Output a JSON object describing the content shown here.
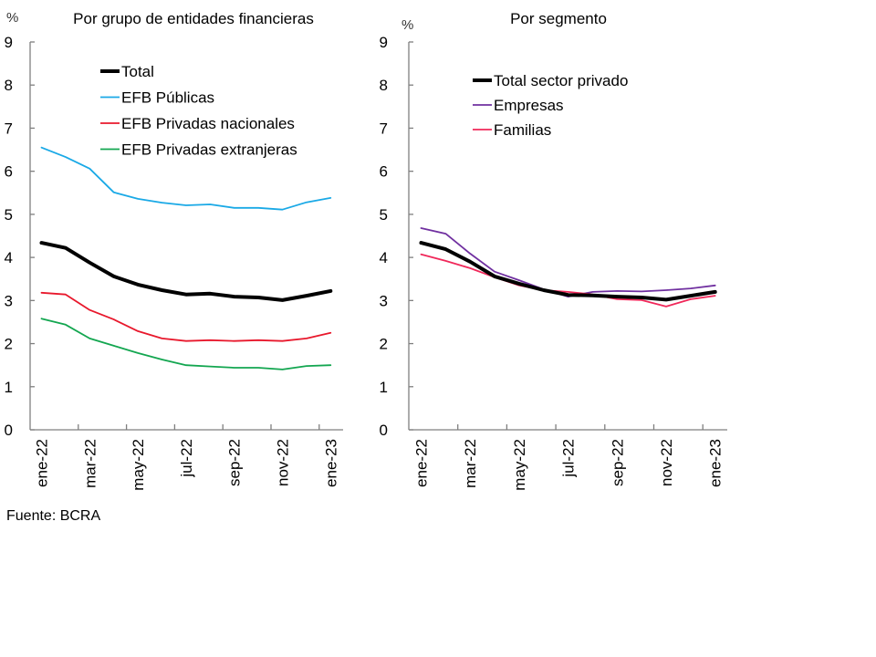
{
  "source": "Fuente: BCRA",
  "chart_data": [
    {
      "type": "line",
      "title": "Por grupo de entidades financieras",
      "ylabel": "%",
      "xlabel": "",
      "ylim": [
        0,
        9
      ],
      "yticks": [
        "0",
        "1",
        "2",
        "3",
        "4",
        "5",
        "6",
        "7",
        "8",
        "9"
      ],
      "x": [
        "ene-22",
        "feb-22",
        "mar-22",
        "abr-22",
        "may-22",
        "jun-22",
        "jul-22",
        "ago-22",
        "sep-22",
        "oct-22",
        "nov-22",
        "dic-22",
        "ene-23"
      ],
      "xtick_labels": [
        "ene-22",
        "mar-22",
        "may-22",
        "jul-22",
        "sep-22",
        "nov-22",
        "ene-23"
      ],
      "grid": false,
      "legend_position": "top-center",
      "series": [
        {
          "name": "Total",
          "color": "#000000",
          "bold": true,
          "values": [
            4.34,
            4.22,
            3.88,
            3.56,
            3.37,
            3.24,
            3.14,
            3.16,
            3.09,
            3.07,
            3.01,
            3.11,
            3.22
          ]
        },
        {
          "name": "EFB Públicas",
          "color": "#1aa9e6",
          "bold": false,
          "values": [
            6.55,
            6.33,
            6.06,
            5.51,
            5.36,
            5.27,
            5.21,
            5.23,
            5.15,
            5.15,
            5.11,
            5.28,
            5.38
          ]
        },
        {
          "name": "EFB Privadas nacionales",
          "color": "#e8182c",
          "bold": false,
          "values": [
            3.18,
            3.14,
            2.78,
            2.56,
            2.29,
            2.12,
            2.06,
            2.08,
            2.06,
            2.08,
            2.06,
            2.12,
            2.25
          ]
        },
        {
          "name": "EFB Privadas extranjeras",
          "color": "#13a650",
          "bold": false,
          "values": [
            2.58,
            2.44,
            2.12,
            1.95,
            1.78,
            1.63,
            1.5,
            1.47,
            1.44,
            1.44,
            1.4,
            1.48,
            1.5
          ]
        }
      ]
    },
    {
      "type": "line",
      "title": "Por segmento",
      "ylabel": "%",
      "xlabel": "",
      "ylim": [
        0,
        9
      ],
      "yticks": [
        "0",
        "1",
        "2",
        "3",
        "4",
        "5",
        "6",
        "7",
        "8",
        "9"
      ],
      "x": [
        "ene-22",
        "feb-22",
        "mar-22",
        "abr-22",
        "may-22",
        "jun-22",
        "jul-22",
        "ago-22",
        "sep-22",
        "oct-22",
        "nov-22",
        "dic-22",
        "ene-23"
      ],
      "xtick_labels": [
        "ene-22",
        "mar-22",
        "may-22",
        "jul-22",
        "sep-22",
        "nov-22",
        "ene-23"
      ],
      "grid": false,
      "legend_position": "top-center",
      "series": [
        {
          "name": "Total sector privado",
          "color": "#000000",
          "bold": true,
          "values": [
            4.34,
            4.19,
            3.9,
            3.56,
            3.39,
            3.24,
            3.13,
            3.12,
            3.09,
            3.07,
            3.02,
            3.11,
            3.2
          ]
        },
        {
          "name": "Empresas",
          "color": "#7030a0",
          "bold": false,
          "values": [
            4.68,
            4.55,
            4.09,
            3.67,
            3.47,
            3.26,
            3.09,
            3.2,
            3.22,
            3.21,
            3.24,
            3.28,
            3.35
          ]
        },
        {
          "name": "Familias",
          "color": "#f0285a",
          "bold": false,
          "values": [
            4.07,
            3.92,
            3.75,
            3.54,
            3.35,
            3.24,
            3.2,
            3.14,
            3.03,
            3.01,
            2.86,
            3.03,
            3.11
          ]
        }
      ]
    }
  ]
}
